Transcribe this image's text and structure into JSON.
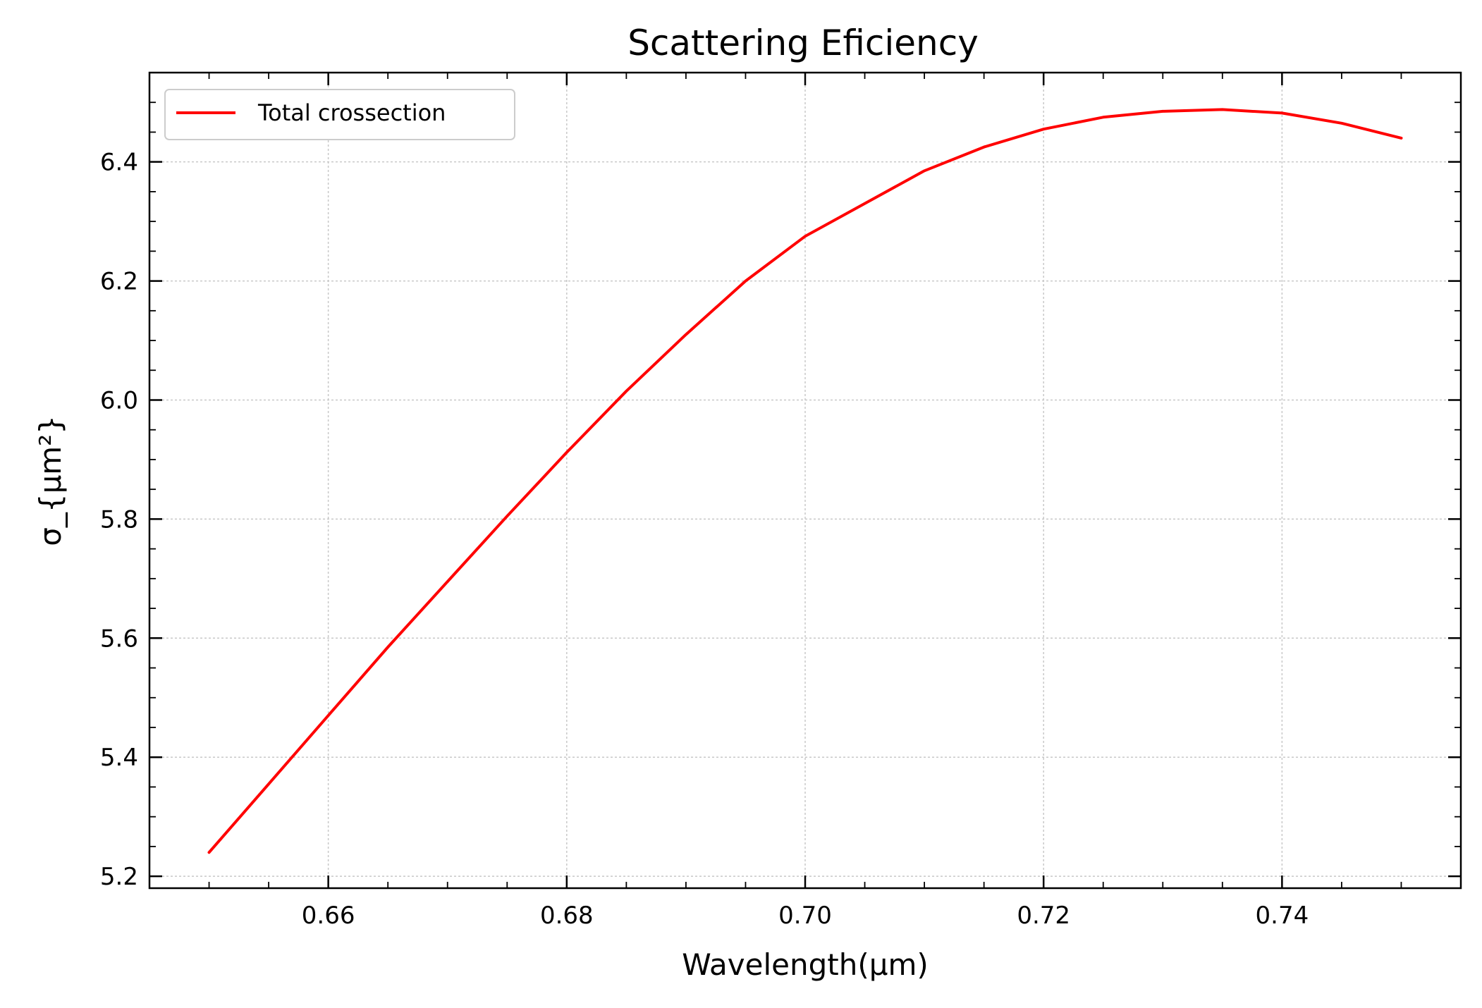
{
  "chart_data": {
    "type": "line",
    "title": "Scattering Eficiency",
    "xlabel": "Wavelength(μm)",
    "ylabel": "σ_{μm²}",
    "xlim": [
      0.645,
      0.755
    ],
    "ylim": [
      5.18,
      6.55
    ],
    "x_ticks": [
      0.66,
      0.68,
      0.7,
      0.72,
      0.74
    ],
    "x_tick_labels": [
      "0.66",
      "0.68",
      "0.70",
      "0.72",
      "0.74"
    ],
    "y_ticks": [
      5.2,
      5.4,
      5.6,
      5.8,
      6.0,
      6.2,
      6.4
    ],
    "y_tick_labels": [
      "5.2",
      "5.4",
      "5.6",
      "5.8",
      "6.0",
      "6.2",
      "6.4"
    ],
    "x_minor_step": 0.005,
    "y_minor_step": 0.05,
    "grid": true,
    "legend_position": "top-left",
    "series": [
      {
        "name": "Total crossection",
        "color": "#ff0000",
        "x": [
          0.65,
          0.655,
          0.66,
          0.665,
          0.67,
          0.675,
          0.68,
          0.685,
          0.69,
          0.695,
          0.7,
          0.705,
          0.71,
          0.715,
          0.72,
          0.725,
          0.73,
          0.735,
          0.74,
          0.745,
          0.75
        ],
        "y": [
          5.24,
          5.355,
          5.47,
          5.585,
          5.695,
          5.805,
          5.912,
          6.015,
          6.11,
          6.2,
          6.275,
          6.33,
          6.385,
          6.425,
          6.455,
          6.475,
          6.485,
          6.488,
          6.482,
          6.465,
          6.44
        ]
      }
    ]
  }
}
